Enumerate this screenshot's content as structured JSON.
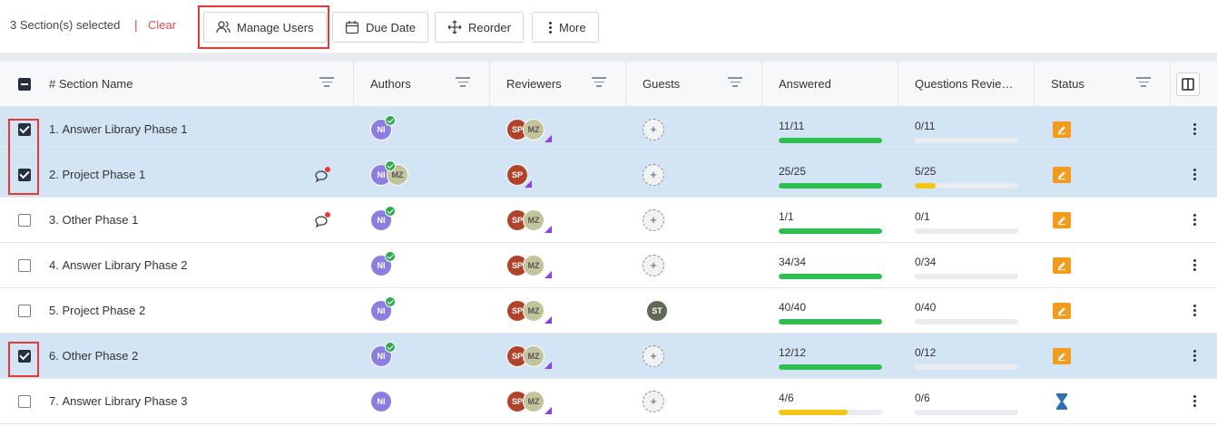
{
  "toolbar": {
    "selection_text": "3 Section(s) selected",
    "separator": "|",
    "clear_label": "Clear",
    "manage_users_label": "Manage Users",
    "due_date_label": "Due Date",
    "reorder_label": "Reorder",
    "more_label": "More"
  },
  "columns": {
    "section_name": "# Section Name",
    "authors": "Authors",
    "reviewers": "Reviewers",
    "guests": "Guests",
    "answered": "Answered",
    "questions_reviewed": "Questions Revie…",
    "status": "Status"
  },
  "colors": {
    "selected_row": "#d3e4f5",
    "progress_green": "#2ebd4f",
    "progress_yellow": "#f5c518",
    "status_orange": "#f29b1d",
    "status_blue": "#2f6fb3",
    "highlight_red": "#e53935"
  },
  "rows": [
    {
      "num": "1.",
      "name": "Answer Library Phase 1",
      "selected": true,
      "comment": false,
      "authors": [
        "NI"
      ],
      "authors_done": true,
      "reviewers": [
        "SP",
        "MZ"
      ],
      "guests": [],
      "answered": "11/11",
      "answered_frac": 1.0,
      "answered_color": "green",
      "reviewed": "0/11",
      "reviewed_frac": 0.0,
      "reviewed_color": "yellow",
      "status_icon": "edit-icon"
    },
    {
      "num": "2.",
      "name": "Project Phase 1",
      "selected": true,
      "comment": true,
      "authors": [
        "NI",
        "MZ"
      ],
      "authors_done": true,
      "reviewers": [
        "SP"
      ],
      "guests": [],
      "answered": "25/25",
      "answered_frac": 1.0,
      "answered_color": "green",
      "reviewed": "5/25",
      "reviewed_frac": 0.2,
      "reviewed_color": "yellow",
      "status_icon": "edit-icon"
    },
    {
      "num": "3.",
      "name": "Other Phase 1",
      "selected": false,
      "comment": true,
      "authors": [
        "NI"
      ],
      "authors_done": true,
      "reviewers": [
        "SP",
        "MZ"
      ],
      "guests": [],
      "answered": "1/1",
      "answered_frac": 1.0,
      "answered_color": "green",
      "reviewed": "0/1",
      "reviewed_frac": 0.0,
      "reviewed_color": "yellow",
      "status_icon": "edit-icon"
    },
    {
      "num": "4.",
      "name": "Answer Library Phase 2",
      "selected": false,
      "comment": false,
      "authors": [
        "NI"
      ],
      "authors_done": true,
      "reviewers": [
        "SP",
        "MZ"
      ],
      "guests": [],
      "answered": "34/34",
      "answered_frac": 1.0,
      "answered_color": "green",
      "reviewed": "0/34",
      "reviewed_frac": 0.0,
      "reviewed_color": "yellow",
      "status_icon": "edit-icon"
    },
    {
      "num": "5.",
      "name": "Project Phase 2",
      "selected": false,
      "comment": false,
      "authors": [
        "NI"
      ],
      "authors_done": true,
      "reviewers": [
        "SP",
        "MZ"
      ],
      "guests": [
        "ST"
      ],
      "answered": "40/40",
      "answered_frac": 1.0,
      "answered_color": "green",
      "reviewed": "0/40",
      "reviewed_frac": 0.0,
      "reviewed_color": "yellow",
      "status_icon": "edit-icon"
    },
    {
      "num": "6.",
      "name": "Other Phase 2",
      "selected": true,
      "comment": false,
      "authors": [
        "NI"
      ],
      "authors_done": true,
      "reviewers": [
        "SP",
        "MZ"
      ],
      "guests": [],
      "answered": "12/12",
      "answered_frac": 1.0,
      "answered_color": "green",
      "reviewed": "0/12",
      "reviewed_frac": 0.0,
      "reviewed_color": "yellow",
      "status_icon": "edit-icon"
    },
    {
      "num": "7.",
      "name": "Answer Library Phase 3",
      "selected": false,
      "comment": false,
      "authors": [
        "NI"
      ],
      "authors_done": false,
      "reviewers": [
        "SP",
        "MZ"
      ],
      "guests": [],
      "answered": "4/6",
      "answered_frac": 0.667,
      "answered_color": "yellow",
      "reviewed": "0/6",
      "reviewed_frac": 0.0,
      "reviewed_color": "yellow",
      "status_icon": "hourglass-icon"
    }
  ]
}
